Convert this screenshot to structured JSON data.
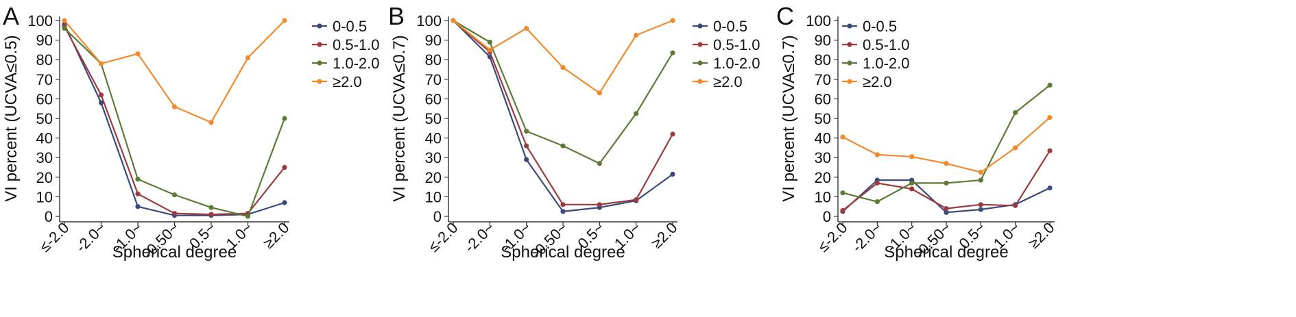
{
  "chart_data": [
    {
      "type": "line",
      "panel_label": "A",
      "xlabel": "Spherical degree",
      "ylabel": "VI percent (UCVA≤0.5)",
      "categories": [
        "≤-2.0",
        "-2.0~",
        "-1.0~",
        "-0.50~",
        "0.5~",
        "1.0~",
        "≥2.0"
      ],
      "yticks": [
        "0",
        "10",
        "20",
        "30",
        "40",
        "50",
        "60",
        "70",
        "80",
        "90",
        "100"
      ],
      "ylim": [
        0,
        100
      ],
      "grid": false,
      "legend_position": "top-right",
      "series": [
        {
          "name": "0-0.5",
          "color": "#3b4a7a",
          "values": [
            98,
            58,
            5,
            0.5,
            0.5,
            1,
            7
          ]
        },
        {
          "name": "0.5-1.0",
          "color": "#9b3a3f",
          "values": [
            97,
            62,
            11.5,
            1.5,
            1,
            1.5,
            25
          ]
        },
        {
          "name": "1.0-2.0",
          "color": "#5e7a34",
          "values": [
            96,
            78,
            19,
            11,
            4.5,
            0,
            50
          ]
        },
        {
          "name": "≥2.0",
          "color": "#f08a2c",
          "values": [
            100,
            78,
            83,
            56,
            48,
            81,
            100
          ]
        }
      ]
    },
    {
      "type": "line",
      "panel_label": "B",
      "xlabel": "Spherical degree",
      "ylabel": "VI percent (UCVA≤0.7)",
      "categories": [
        "≤-2.0",
        "-2.0~",
        "-1.0~",
        "-0.50~",
        "0.5~",
        "1.0~",
        "≥2.0"
      ],
      "yticks": [
        "0",
        "10",
        "20",
        "30",
        "40",
        "50",
        "60",
        "70",
        "80",
        "90",
        "100"
      ],
      "ylim": [
        0,
        100
      ],
      "grid": false,
      "legend_position": "top-right",
      "series": [
        {
          "name": "0-0.5",
          "color": "#3b4a7a",
          "values": [
            100,
            81.5,
            29,
            2.5,
            4.5,
            8,
            21.5
          ]
        },
        {
          "name": "0.5-1.0",
          "color": "#9b3a3f",
          "values": [
            100,
            84,
            36,
            6,
            6,
            8.5,
            42
          ]
        },
        {
          "name": "1.0-2.0",
          "color": "#5e7a34",
          "values": [
            100,
            89,
            43.5,
            36,
            27,
            52.5,
            83.5
          ]
        },
        {
          "name": "≥2.0",
          "color": "#f08a2c",
          "values": [
            100,
            85,
            96,
            76,
            63,
            92.5,
            100
          ]
        }
      ]
    },
    {
      "type": "line",
      "panel_label": "C",
      "xlabel": "Spherical degree",
      "ylabel": "VI percent (UCVA≤0.7)",
      "categories": [
        "≤-2.0",
        "-2.0~",
        "-1.0~",
        "-0.50~",
        "0.5~",
        "1.0~",
        "≥2.0"
      ],
      "yticks": [
        "0",
        "10",
        "20",
        "30",
        "40",
        "50",
        "60",
        "70",
        "80",
        "90",
        "100"
      ],
      "ylim": [
        0,
        100
      ],
      "grid": false,
      "legend_position": "top-left",
      "series": [
        {
          "name": "0-0.5",
          "color": "#3b4a7a",
          "values": [
            2.5,
            18.5,
            18.5,
            2,
            3.5,
            6,
            14.5
          ]
        },
        {
          "name": "0.5-1.0",
          "color": "#9b3a3f",
          "values": [
            3,
            17,
            14,
            4,
            6,
            5.5,
            33.5
          ]
        },
        {
          "name": "1.0-2.0",
          "color": "#5e7a34",
          "values": [
            12,
            7.5,
            17,
            17,
            18.5,
            53,
            67
          ]
        },
        {
          "name": "≥2.0",
          "color": "#f08a2c",
          "values": [
            40.5,
            31.5,
            30.5,
            27,
            22.5,
            35,
            50.5
          ]
        }
      ]
    }
  ]
}
